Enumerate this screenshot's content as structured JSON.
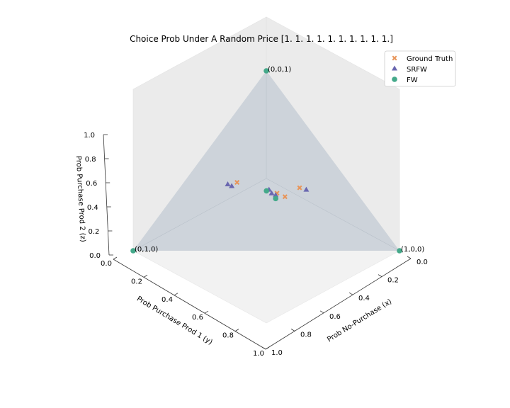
{
  "chart_data": {
    "type": "scatter",
    "title": "Choice Prob Under A Random Price [1. 1. 1. 1. 1. 1. 1. 1. 1. 1.]",
    "xlabel": "Prob No-Purchase (x)",
    "ylabel": "Prob Purchase Prod 1 (y)",
    "zlabel": "Prob Purchase Prod 2 (z)",
    "xlim": [
      0,
      1
    ],
    "ylim": [
      0,
      1
    ],
    "zlim": [
      0,
      1
    ],
    "x_ticks": [
      "0.0",
      "0.2",
      "0.4",
      "0.6",
      "0.8",
      "1.0"
    ],
    "y_ticks": [
      "0.0",
      "0.2",
      "0.4",
      "0.6",
      "0.8",
      "1.0"
    ],
    "z_ticks": [
      "0.0",
      "0.2",
      "0.4",
      "0.6",
      "0.8",
      "1.0"
    ],
    "legend_position": "top-right",
    "simplex_vertices": [
      {
        "label": "(1,0,0)",
        "x": 1,
        "y": 0,
        "z": 0
      },
      {
        "label": "(0,1,0)",
        "x": 0,
        "y": 1,
        "z": 0
      },
      {
        "label": "(0,0,1)",
        "x": 0,
        "y": 0,
        "z": 1
      }
    ],
    "series": [
      {
        "name": "Ground Truth",
        "marker": "x",
        "color": "#e8955a",
        "points": [
          {
            "x": 0.45,
            "y": 0.2,
            "z": 0.35
          },
          {
            "x": 0.42,
            "y": 0.28,
            "z": 0.3
          },
          {
            "x": 0.38,
            "y": 0.3,
            "z": 0.32
          },
          {
            "x": 0.2,
            "y": 0.42,
            "z": 0.38
          }
        ]
      },
      {
        "name": "SRFW",
        "marker": "triangle",
        "color": "#6a67b0",
        "points": [
          {
            "x": 0.48,
            "y": 0.18,
            "z": 0.34
          },
          {
            "x": 0.38,
            "y": 0.31,
            "z": 0.31
          },
          {
            "x": 0.36,
            "y": 0.32,
            "z": 0.32
          },
          {
            "x": 0.34,
            "y": 0.32,
            "z": 0.34
          },
          {
            "x": 0.19,
            "y": 0.45,
            "z": 0.36
          },
          {
            "x": 0.17,
            "y": 0.46,
            "z": 0.37
          }
        ]
      },
      {
        "name": "FW",
        "marker": "circle",
        "color": "#44a98a",
        "points": [
          {
            "x": 1,
            "y": 0,
            "z": 0
          },
          {
            "x": 0,
            "y": 1,
            "z": 0
          },
          {
            "x": 0,
            "y": 0,
            "z": 1
          },
          {
            "x": 0.334,
            "y": 0.333,
            "z": 0.333
          },
          {
            "x": 0.39,
            "y": 0.32,
            "z": 0.29
          }
        ]
      }
    ]
  },
  "colors": {
    "pane_top": "#f2f2f2",
    "pane_side": "#ebebeb",
    "simplex_fill": "#c6cdd5",
    "ground_truth": "#e8955a",
    "srfw": "#6a67b0",
    "fw": "#44a98a"
  }
}
